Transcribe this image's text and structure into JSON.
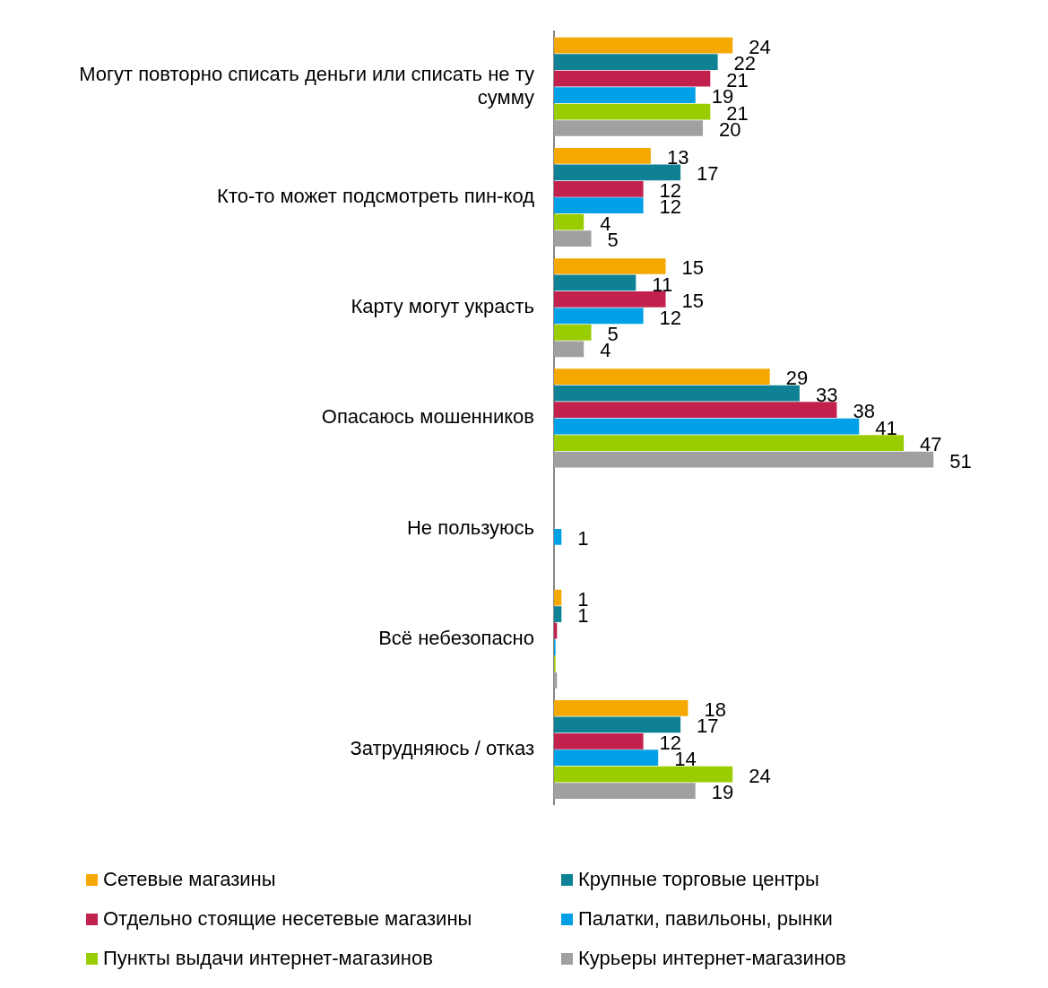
{
  "chart_data": {
    "type": "bar",
    "orientation": "horizontal",
    "legend": "bottom",
    "tick_labels": "y",
    "categories": [
      "Могут повторно списать деньги или списать не ту сумму",
      "Кто-то может подсмотреть пин-код",
      "Карту могут украсть",
      "Опасаюсь мошенников",
      "Не пользуюсь",
      "Всё небезопасно",
      "Затрудняюсь / отказ"
    ],
    "series": [
      {
        "name": "Сетевые магазины",
        "color": "#f5a800",
        "values": [
          24,
          13,
          15,
          29,
          0,
          1,
          18
        ],
        "value_labels": [
          "24",
          "13",
          "15",
          "29",
          null,
          "1",
          "18"
        ]
      },
      {
        "name": "Крупные торговые центры",
        "color": "#0e8294",
        "values": [
          22,
          17,
          11,
          33,
          0,
          1,
          17
        ],
        "value_labels": [
          "22",
          "17",
          "11",
          "33",
          null,
          "1",
          "17"
        ]
      },
      {
        "name": "Отдельно стоящие несетевые магазины",
        "color": "#c3214d",
        "values": [
          21,
          12,
          15,
          38,
          0,
          0.4,
          12
        ],
        "value_labels": [
          "21",
          "12",
          "15",
          "38",
          null,
          null,
          "12"
        ]
      },
      {
        "name": "Палатки, павильоны, рынки",
        "color": "#00a0e6",
        "values": [
          19,
          12,
          12,
          41,
          1,
          0.2,
          14
        ],
        "value_labels": [
          "19",
          "12",
          "12",
          "41",
          "1",
          null,
          "14"
        ]
      },
      {
        "name": "Пункты выдачи интернет-магазинов",
        "color": "#9acd00",
        "values": [
          21,
          4,
          5,
          47,
          0,
          0.2,
          24
        ],
        "value_labels": [
          "21",
          "4",
          "5",
          "47",
          null,
          null,
          "24"
        ]
      },
      {
        "name": "Курьеры интернет-магазинов",
        "color": "#a0a0a0",
        "values": [
          20,
          5,
          4,
          51,
          0,
          0.4,
          19
        ],
        "value_labels": [
          "20",
          "5",
          "4",
          "51",
          null,
          null,
          "19"
        ]
      }
    ]
  }
}
